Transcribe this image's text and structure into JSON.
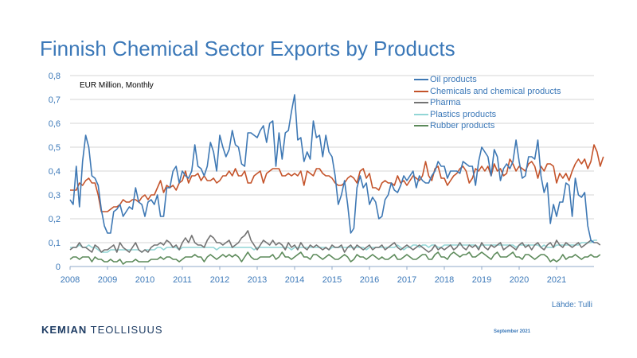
{
  "header": {
    "title": "Finnish Chemical Sector Exports by Products"
  },
  "footer": {
    "source": "Lähde: Tulli",
    "logo_bold": "KEMIAN",
    "logo_rest": " TEOLLISUUS",
    "date": "September 2021"
  },
  "colors": {
    "oil": "#3e78b4",
    "chemicals": "#c4532a",
    "pharma": "#737373",
    "plastics": "#92d6d6",
    "rubber": "#5c8a5a",
    "axis_text": "#3b78b8",
    "grid": "#d6d6d6"
  },
  "chart_data": {
    "type": "line",
    "unit_label": "EUR Million, Monthly",
    "ylim": [
      0,
      0.8
    ],
    "y_ticks": [
      "0",
      "0,1",
      "0,2",
      "0,3",
      "0,4",
      "0,5",
      "0,6",
      "0,7",
      "0,8"
    ],
    "x_ticks": [
      "2008",
      "2009",
      "2010",
      "2011",
      "2012",
      "2013",
      "2014",
      "2015",
      "2016",
      "2017",
      "2018",
      "2019",
      "2020",
      "2021"
    ],
    "x_start": "2008-01",
    "x_end": "2021-06",
    "grid": "horizontal",
    "legend_position": "top-right",
    "series": [
      {
        "name": "Oil products",
        "color": "#3e78b4",
        "values": [
          0.28,
          0.26,
          0.42,
          0.25,
          0.44,
          0.55,
          0.5,
          0.38,
          0.37,
          0.34,
          0.24,
          0.17,
          0.14,
          0.14,
          0.23,
          0.24,
          0.26,
          0.21,
          0.23,
          0.25,
          0.24,
          0.33,
          0.27,
          0.26,
          0.21,
          0.27,
          0.28,
          0.26,
          0.3,
          0.21,
          0.21,
          0.33,
          0.33,
          0.4,
          0.42,
          0.35,
          0.4,
          0.38,
          0.37,
          0.4,
          0.51,
          0.42,
          0.41,
          0.38,
          0.42,
          0.52,
          0.48,
          0.4,
          0.55,
          0.5,
          0.46,
          0.49,
          0.57,
          0.51,
          0.5,
          0.43,
          0.42,
          0.56,
          0.56,
          0.55,
          0.54,
          0.57,
          0.59,
          0.52,
          0.6,
          0.61,
          0.42,
          0.56,
          0.45,
          0.56,
          0.57,
          0.65,
          0.72,
          0.53,
          0.54,
          0.44,
          0.48,
          0.45,
          0.61,
          0.54,
          0.55,
          0.46,
          0.55,
          0.48,
          0.46,
          0.38,
          0.26,
          0.3,
          0.36,
          0.26,
          0.14,
          0.16,
          0.33,
          0.38,
          0.33,
          0.35,
          0.26,
          0.29,
          0.27,
          0.2,
          0.21,
          0.28,
          0.3,
          0.35,
          0.32,
          0.31,
          0.34,
          0.38,
          0.36,
          0.38,
          0.4,
          0.33,
          0.38,
          0.36,
          0.35,
          0.35,
          0.38,
          0.4,
          0.44,
          0.42,
          0.42,
          0.37,
          0.4,
          0.4,
          0.4,
          0.39,
          0.44,
          0.43,
          0.42,
          0.42,
          0.34,
          0.44,
          0.5,
          0.48,
          0.46,
          0.38,
          0.49,
          0.46,
          0.36,
          0.41,
          0.43,
          0.41,
          0.44,
          0.53,
          0.44,
          0.37,
          0.38,
          0.46,
          0.46,
          0.45,
          0.53,
          0.38,
          0.31,
          0.35,
          0.18,
          0.26,
          0.21,
          0.27,
          0.27,
          0.35,
          0.34,
          0.21,
          0.37,
          0.3,
          0.29,
          0.31,
          0.17,
          0.11,
          0.1
        ]
      },
      {
        "name": "Chemicals and chemical products",
        "color": "#c4532a",
        "values": [
          0.32,
          0.32,
          0.32,
          0.35,
          0.34,
          0.36,
          0.37,
          0.35,
          0.35,
          0.3,
          0.23,
          0.23,
          0.23,
          0.24,
          0.25,
          0.25,
          0.26,
          0.28,
          0.27,
          0.27,
          0.28,
          0.28,
          0.27,
          0.29,
          0.3,
          0.28,
          0.3,
          0.3,
          0.33,
          0.36,
          0.31,
          0.34,
          0.33,
          0.34,
          0.32,
          0.35,
          0.36,
          0.4,
          0.35,
          0.38,
          0.38,
          0.39,
          0.36,
          0.38,
          0.36,
          0.36,
          0.37,
          0.35,
          0.36,
          0.38,
          0.38,
          0.4,
          0.38,
          0.41,
          0.38,
          0.38,
          0.4,
          0.35,
          0.35,
          0.38,
          0.39,
          0.4,
          0.35,
          0.39,
          0.4,
          0.41,
          0.41,
          0.41,
          0.38,
          0.38,
          0.39,
          0.38,
          0.39,
          0.38,
          0.4,
          0.34,
          0.4,
          0.39,
          0.38,
          0.41,
          0.41,
          0.39,
          0.38,
          0.38,
          0.37,
          0.35,
          0.34,
          0.34,
          0.35,
          0.37,
          0.38,
          0.37,
          0.35,
          0.4,
          0.41,
          0.37,
          0.39,
          0.33,
          0.33,
          0.32,
          0.35,
          0.36,
          0.35,
          0.35,
          0.34,
          0.38,
          0.35,
          0.36,
          0.34,
          0.36,
          0.38,
          0.37,
          0.36,
          0.38,
          0.44,
          0.38,
          0.36,
          0.41,
          0.42,
          0.37,
          0.37,
          0.34,
          0.36,
          0.38,
          0.39,
          0.41,
          0.42,
          0.4,
          0.35,
          0.37,
          0.41,
          0.4,
          0.42,
          0.4,
          0.42,
          0.38,
          0.43,
          0.4,
          0.41,
          0.38,
          0.39,
          0.45,
          0.43,
          0.4,
          0.42,
          0.41,
          0.4,
          0.43,
          0.44,
          0.42,
          0.37,
          0.42,
          0.4,
          0.43,
          0.43,
          0.42,
          0.35,
          0.39,
          0.37,
          0.39,
          0.36,
          0.4,
          0.43,
          0.45,
          0.43,
          0.45,
          0.41,
          0.44,
          0.51,
          0.48,
          0.42,
          0.46
        ]
      },
      {
        "name": "Pharma",
        "color": "#737373",
        "values": [
          0.07,
          0.08,
          0.08,
          0.1,
          0.08,
          0.08,
          0.07,
          0.06,
          0.09,
          0.08,
          0.06,
          0.07,
          0.07,
          0.08,
          0.09,
          0.06,
          0.1,
          0.08,
          0.07,
          0.06,
          0.08,
          0.1,
          0.07,
          0.06,
          0.07,
          0.06,
          0.08,
          0.09,
          0.09,
          0.1,
          0.09,
          0.11,
          0.1,
          0.08,
          0.09,
          0.07,
          0.1,
          0.12,
          0.1,
          0.13,
          0.1,
          0.09,
          0.09,
          0.08,
          0.11,
          0.13,
          0.12,
          0.1,
          0.1,
          0.09,
          0.1,
          0.11,
          0.08,
          0.09,
          0.1,
          0.12,
          0.13,
          0.15,
          0.11,
          0.09,
          0.07,
          0.09,
          0.11,
          0.1,
          0.09,
          0.11,
          0.09,
          0.1,
          0.09,
          0.07,
          0.1,
          0.08,
          0.09,
          0.07,
          0.1,
          0.08,
          0.07,
          0.09,
          0.08,
          0.09,
          0.08,
          0.07,
          0.08,
          0.07,
          0.09,
          0.08,
          0.08,
          0.09,
          0.06,
          0.08,
          0.09,
          0.07,
          0.09,
          0.08,
          0.07,
          0.08,
          0.09,
          0.07,
          0.08,
          0.08,
          0.09,
          0.07,
          0.08,
          0.09,
          0.1,
          0.08,
          0.07,
          0.08,
          0.09,
          0.08,
          0.07,
          0.08,
          0.09,
          0.08,
          0.07,
          0.06,
          0.07,
          0.09,
          0.07,
          0.08,
          0.07,
          0.08,
          0.09,
          0.07,
          0.08,
          0.1,
          0.08,
          0.07,
          0.09,
          0.08,
          0.09,
          0.07,
          0.1,
          0.08,
          0.07,
          0.09,
          0.08,
          0.09,
          0.1,
          0.07,
          0.08,
          0.09,
          0.08,
          0.07,
          0.09,
          0.1,
          0.08,
          0.09,
          0.07,
          0.09,
          0.1,
          0.08,
          0.07,
          0.09,
          0.1,
          0.08,
          0.11,
          0.09,
          0.08,
          0.1,
          0.09,
          0.08,
          0.09,
          0.1,
          0.08,
          0.09,
          0.1,
          0.11,
          0.1,
          0.1,
          0.09
        ]
      },
      {
        "name": "Plastics products",
        "color": "#92d6d6",
        "values": [
          0.08,
          0.08,
          0.08,
          0.09,
          0.08,
          0.08,
          0.09,
          0.08,
          0.08,
          0.07,
          0.06,
          0.06,
          0.06,
          0.07,
          0.07,
          0.07,
          0.07,
          0.07,
          0.07,
          0.07,
          0.07,
          0.07,
          0.07,
          0.06,
          0.07,
          0.07,
          0.07,
          0.07,
          0.08,
          0.08,
          0.07,
          0.08,
          0.08,
          0.08,
          0.08,
          0.07,
          0.08,
          0.08,
          0.08,
          0.08,
          0.08,
          0.08,
          0.08,
          0.08,
          0.08,
          0.08,
          0.08,
          0.07,
          0.08,
          0.08,
          0.08,
          0.08,
          0.08,
          0.08,
          0.08,
          0.08,
          0.08,
          0.08,
          0.08,
          0.07,
          0.08,
          0.08,
          0.08,
          0.08,
          0.08,
          0.08,
          0.08,
          0.08,
          0.08,
          0.08,
          0.08,
          0.07,
          0.08,
          0.08,
          0.08,
          0.08,
          0.08,
          0.08,
          0.08,
          0.08,
          0.08,
          0.08,
          0.08,
          0.07,
          0.08,
          0.08,
          0.08,
          0.08,
          0.08,
          0.08,
          0.08,
          0.08,
          0.08,
          0.08,
          0.08,
          0.07,
          0.08,
          0.08,
          0.08,
          0.08,
          0.08,
          0.08,
          0.08,
          0.08,
          0.08,
          0.09,
          0.08,
          0.07,
          0.08,
          0.08,
          0.09,
          0.09,
          0.08,
          0.09,
          0.09,
          0.08,
          0.09,
          0.09,
          0.08,
          0.08,
          0.09,
          0.09,
          0.09,
          0.09,
          0.09,
          0.09,
          0.09,
          0.09,
          0.09,
          0.09,
          0.09,
          0.08,
          0.09,
          0.09,
          0.09,
          0.09,
          0.09,
          0.09,
          0.09,
          0.09,
          0.09,
          0.09,
          0.09,
          0.08,
          0.09,
          0.09,
          0.09,
          0.09,
          0.09,
          0.09,
          0.09,
          0.08,
          0.09,
          0.08,
          0.08,
          0.08,
          0.09,
          0.09,
          0.09,
          0.09,
          0.09,
          0.09,
          0.09,
          0.09,
          0.1,
          0.1,
          0.1,
          0.1,
          0.11,
          0.11
        ]
      },
      {
        "name": "Rubber products",
        "color": "#5c8a5a",
        "values": [
          0.03,
          0.04,
          0.04,
          0.03,
          0.04,
          0.04,
          0.04,
          0.02,
          0.04,
          0.03,
          0.03,
          0.02,
          0.02,
          0.03,
          0.02,
          0.02,
          0.03,
          0.01,
          0.02,
          0.02,
          0.02,
          0.03,
          0.02,
          0.02,
          0.02,
          0.02,
          0.03,
          0.03,
          0.03,
          0.04,
          0.03,
          0.04,
          0.04,
          0.03,
          0.03,
          0.02,
          0.03,
          0.04,
          0.04,
          0.04,
          0.05,
          0.04,
          0.04,
          0.02,
          0.04,
          0.05,
          0.04,
          0.03,
          0.04,
          0.05,
          0.04,
          0.05,
          0.04,
          0.05,
          0.04,
          0.02,
          0.04,
          0.06,
          0.04,
          0.03,
          0.03,
          0.04,
          0.04,
          0.04,
          0.04,
          0.05,
          0.03,
          0.04,
          0.06,
          0.04,
          0.04,
          0.03,
          0.04,
          0.05,
          0.06,
          0.04,
          0.04,
          0.03,
          0.05,
          0.05,
          0.04,
          0.03,
          0.04,
          0.05,
          0.04,
          0.03,
          0.03,
          0.04,
          0.05,
          0.04,
          0.02,
          0.03,
          0.05,
          0.04,
          0.04,
          0.03,
          0.04,
          0.05,
          0.04,
          0.03,
          0.04,
          0.03,
          0.03,
          0.04,
          0.05,
          0.03,
          0.03,
          0.04,
          0.05,
          0.04,
          0.03,
          0.03,
          0.04,
          0.05,
          0.05,
          0.03,
          0.03,
          0.05,
          0.06,
          0.04,
          0.04,
          0.03,
          0.05,
          0.06,
          0.05,
          0.04,
          0.05,
          0.05,
          0.06,
          0.04,
          0.04,
          0.05,
          0.06,
          0.05,
          0.04,
          0.03,
          0.05,
          0.06,
          0.04,
          0.04,
          0.04,
          0.05,
          0.06,
          0.04,
          0.04,
          0.03,
          0.05,
          0.05,
          0.04,
          0.03,
          0.04,
          0.05,
          0.05,
          0.04,
          0.02,
          0.03,
          0.02,
          0.03,
          0.05,
          0.03,
          0.04,
          0.04,
          0.05,
          0.04,
          0.03,
          0.04,
          0.04,
          0.05,
          0.04,
          0.04,
          0.05
        ]
      }
    ]
  }
}
